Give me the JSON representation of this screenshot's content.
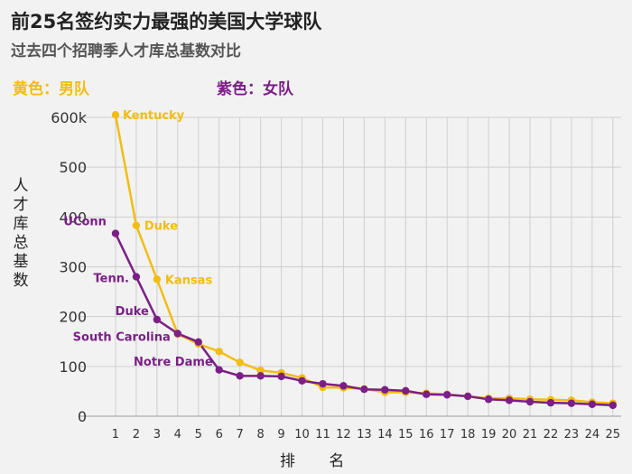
{
  "chart_data": {
    "type": "line",
    "title": "前25名签约实力最强的美国大学球队",
    "subtitle": "过去四个招聘季人才库总基数对比",
    "xlabel": "排  名",
    "ylabel": "人才库总基数",
    "x": [
      1,
      2,
      3,
      4,
      5,
      6,
      7,
      8,
      9,
      10,
      11,
      12,
      13,
      14,
      15,
      16,
      17,
      18,
      19,
      20,
      21,
      22,
      23,
      24,
      25
    ],
    "xlim": [
      0,
      25.4
    ],
    "ylim": [
      0,
      600
    ],
    "yticks": [
      {
        "value": 0,
        "label": "0"
      },
      {
        "value": 100,
        "label": "100"
      },
      {
        "value": 200,
        "label": "200"
      },
      {
        "value": 300,
        "label": "300"
      },
      {
        "value": 400,
        "label": "400"
      },
      {
        "value": 500,
        "label": "500"
      },
      {
        "value": 600,
        "label": "600k"
      }
    ],
    "grid": true,
    "series": [
      {
        "name": "黄色：男队",
        "color": "#f2bd12",
        "values": [
          605,
          383,
          275,
          165,
          145,
          130,
          108,
          92,
          87,
          77,
          58,
          57,
          55,
          48,
          48,
          46,
          44,
          40,
          36,
          36,
          34,
          33,
          32,
          28,
          26
        ],
        "labels": [
          {
            "index": 0,
            "text": "Kentucky"
          },
          {
            "index": 1,
            "text": "Duke"
          },
          {
            "index": 2,
            "text": "Kansas"
          }
        ]
      },
      {
        "name": "紫色：女队",
        "color": "#7b1f86",
        "values": [
          367,
          280,
          194,
          166,
          149,
          93,
          81,
          81,
          80,
          71,
          65,
          61,
          54,
          53,
          51,
          44,
          43,
          40,
          34,
          32,
          29,
          27,
          26,
          24,
          22
        ],
        "labels": [
          {
            "index": 0,
            "text": "UConn"
          },
          {
            "index": 1,
            "text": "Tenn."
          },
          {
            "index": 2,
            "text": "Duke"
          },
          {
            "index": 3,
            "text": "South Carolina"
          },
          {
            "index": 4,
            "text": "Notre Dame"
          }
        ]
      }
    ]
  }
}
